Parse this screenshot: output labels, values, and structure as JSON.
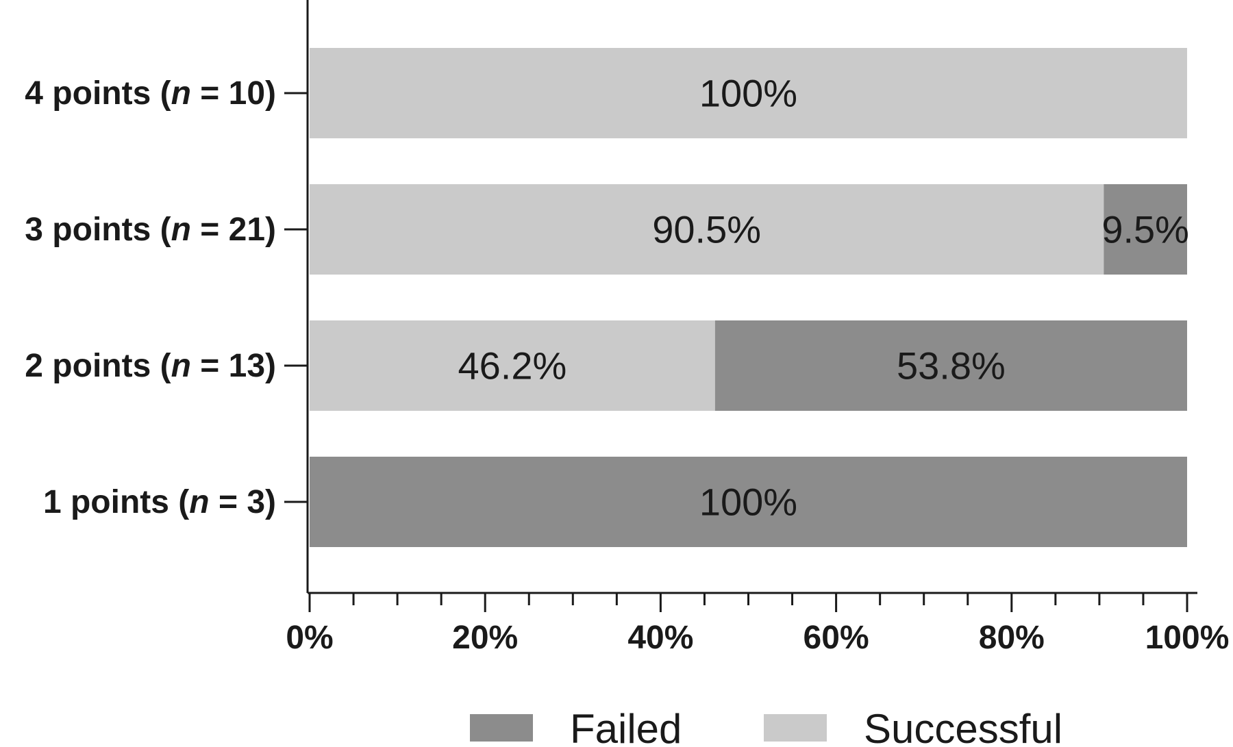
{
  "chart_data": {
    "type": "bar",
    "orientation": "horizontal",
    "stacked": true,
    "categories": [
      "4 points (n = 10)",
      "3 points (n = 21)",
      "2 points (n = 13)",
      "1 points (n = 3)"
    ],
    "category_parts": [
      {
        "pre": "4 points (",
        "italic": "n",
        "post": " = 10)"
      },
      {
        "pre": "3 points (",
        "italic": "n",
        "post": " = 21)"
      },
      {
        "pre": "2 points (",
        "italic": "n",
        "post": " = 13)"
      },
      {
        "pre": "1 points (",
        "italic": "n",
        "post": " = 3)"
      }
    ],
    "series": [
      {
        "name": "Successful",
        "color": "#cacaca",
        "values": [
          100,
          90.5,
          46.2,
          0
        ],
        "labels": [
          "100%",
          "90.5%",
          "46.2%",
          ""
        ]
      },
      {
        "name": "Failed",
        "color": "#8c8c8c",
        "values": [
          0,
          9.5,
          53.8,
          100
        ],
        "labels": [
          "",
          "9.5%",
          "53.8%",
          "100%"
        ]
      }
    ],
    "xlim": [
      0,
      100
    ],
    "xticks": [
      0,
      20,
      40,
      60,
      80,
      100
    ],
    "xtick_labels": [
      "0%",
      "20%",
      "40%",
      "60%",
      "80%",
      "100%"
    ],
    "minor_tick_step": 5,
    "legend": {
      "position": "bottom",
      "order": [
        "Failed",
        "Successful"
      ]
    },
    "grid": false,
    "title": "",
    "xlabel": "",
    "ylabel": ""
  }
}
